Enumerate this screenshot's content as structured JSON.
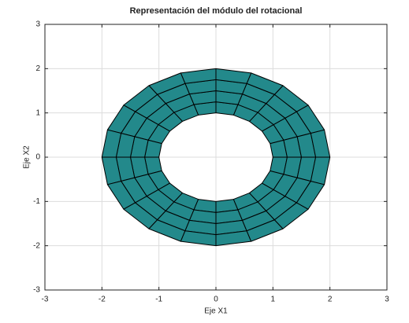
{
  "chart_data": {
    "type": "mesh",
    "title": "Representación del módulo del rotacional",
    "x_label": "Eje X1",
    "y_label": "Eje X2",
    "r": [
      1,
      1.25,
      1.5,
      1.75,
      2
    ],
    "theta_deg": [
      0,
      18,
      36,
      54,
      72,
      90,
      108,
      126,
      144,
      162,
      180,
      198,
      216,
      234,
      252,
      270,
      288,
      306,
      324,
      342,
      360
    ],
    "color": "#23898b",
    "xlim": [
      -3,
      3
    ],
    "ylim": [
      -3,
      3
    ],
    "xticks": [
      -3,
      -2,
      -1,
      0,
      1,
      2,
      3
    ],
    "yticks": [
      -3,
      -2,
      -1,
      0,
      1,
      2,
      3
    ],
    "grid": true
  }
}
